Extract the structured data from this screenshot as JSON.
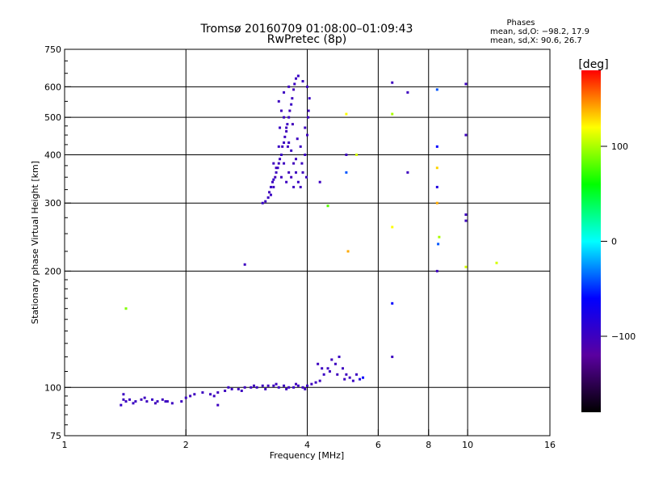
{
  "chart_data": {
    "type": "scatter",
    "title_line1": "Tromsø 20160709 01:08:00–01:09:43",
    "title_line2": "RwPretec (8p)",
    "xlabel": "Frequency [MHz]",
    "ylabel": "Stationary phase Virtual Height [km]",
    "x_scale": "log",
    "y_scale": "log",
    "xlim": [
      1,
      16
    ],
    "ylim": [
      75,
      750
    ],
    "x_ticks": [
      1,
      2,
      4,
      6,
      8,
      10,
      16
    ],
    "y_ticks": [
      75,
      100,
      200,
      300,
      400,
      500,
      600,
      750
    ],
    "x_grid": [
      2,
      4,
      6,
      8,
      10
    ],
    "y_grid": [
      100,
      200,
      300,
      400,
      500,
      600
    ],
    "grid": true,
    "phases_title": "Phases",
    "phases_o": "mean, sd,O: −98.2, 17.9",
    "phases_x": "mean, sd,X:  90.6, 26.7",
    "colorbar_label": "[deg]",
    "colorbar_range": [
      -180,
      180
    ],
    "colorbar_ticks": [
      100,
      0,
      -100
    ],
    "colorbar_colors": [
      "#000000",
      "#5a00a0",
      "#0000ff",
      "#00ffff",
      "#00ff00",
      "#ffff00",
      "#ff0000"
    ],
    "series": [
      {
        "description": "F layer cloud",
        "points": [
          [
            3.1,
            300,
            -95
          ],
          [
            3.15,
            303,
            -100
          ],
          [
            3.2,
            310,
            -98
          ],
          [
            3.22,
            320,
            -102
          ],
          [
            3.25,
            330,
            -96
          ],
          [
            3.28,
            340,
            -100
          ],
          [
            3.3,
            345,
            -95
          ],
          [
            3.33,
            350,
            -105
          ],
          [
            3.35,
            360,
            -100
          ],
          [
            3.38,
            370,
            -98
          ],
          [
            3.4,
            380,
            -102
          ],
          [
            3.42,
            390,
            -100
          ],
          [
            3.45,
            400,
            -97
          ],
          [
            3.47,
            420,
            -101
          ],
          [
            3.5,
            430,
            -99
          ],
          [
            3.52,
            445,
            -100
          ],
          [
            3.55,
            460,
            -103
          ],
          [
            3.57,
            480,
            -98
          ],
          [
            3.6,
            500,
            -100
          ],
          [
            3.62,
            520,
            -101
          ],
          [
            3.65,
            540,
            -97
          ],
          [
            3.67,
            560,
            -100
          ],
          [
            3.7,
            590,
            -104
          ],
          [
            3.72,
            610,
            -98
          ],
          [
            3.75,
            630,
            -100
          ],
          [
            3.8,
            640,
            -96
          ],
          [
            3.4,
            550,
            -100
          ],
          [
            3.45,
            520,
            -102
          ],
          [
            3.5,
            500,
            -99
          ],
          [
            3.55,
            470,
            -101
          ],
          [
            3.6,
            430,
            -100
          ],
          [
            3.65,
            410,
            -98
          ],
          [
            3.7,
            380,
            -103
          ],
          [
            3.75,
            360,
            -100
          ],
          [
            3.8,
            340,
            -97
          ],
          [
            3.85,
            330,
            -100
          ],
          [
            3.9,
            360,
            -102
          ],
          [
            3.95,
            400,
            -99
          ],
          [
            4.0,
            450,
            -100
          ],
          [
            4.02,
            500,
            -101
          ],
          [
            4.05,
            560,
            -98
          ],
          [
            4.0,
            600,
            -100
          ],
          [
            3.9,
            620,
            -97
          ],
          [
            3.3,
            330,
            -100
          ],
          [
            3.25,
            315,
            -98
          ],
          [
            3.35,
            370,
            -101
          ],
          [
            3.45,
            350,
            -100
          ],
          [
            3.55,
            340,
            -99
          ],
          [
            3.65,
            350,
            -102
          ],
          [
            3.75,
            390,
            -100
          ],
          [
            3.85,
            420,
            -98
          ],
          [
            3.95,
            470,
            -100
          ],
          [
            4.03,
            520,
            -101
          ],
          [
            3.5,
            580,
            -99
          ],
          [
            3.6,
            600,
            -100
          ],
          [
            3.42,
            470,
            -98
          ],
          [
            3.58,
            420,
            -100
          ],
          [
            3.68,
            480,
            -103
          ],
          [
            3.78,
            440,
            -100
          ],
          [
            3.88,
            380,
            -99
          ],
          [
            3.98,
            350,
            -100
          ],
          [
            3.3,
            380,
            -101
          ],
          [
            3.4,
            420,
            -98
          ],
          [
            3.5,
            380,
            -100
          ],
          [
            3.6,
            360,
            -102
          ],
          [
            3.7,
            330,
            -100
          ]
        ]
      },
      {
        "description": "E/Es layer traces",
        "points": [
          [
            1.38,
            90,
            -95
          ],
          [
            1.42,
            92,
            -100
          ],
          [
            1.45,
            93,
            -100
          ],
          [
            1.5,
            92,
            -98
          ],
          [
            1.55,
            93,
            -102
          ],
          [
            1.6,
            92,
            -100
          ],
          [
            1.65,
            93,
            -97
          ],
          [
            1.7,
            92,
            -100
          ],
          [
            1.75,
            93,
            -101
          ],
          [
            1.8,
            92,
            -100
          ],
          [
            1.85,
            91,
            -99
          ],
          [
            1.4,
            93,
            -100
          ],
          [
            1.48,
            91,
            -98
          ],
          [
            1.58,
            94,
            -100
          ],
          [
            1.68,
            91,
            -103
          ],
          [
            1.78,
            92,
            -100
          ],
          [
            1.95,
            92,
            -100
          ],
          [
            2.0,
            94,
            -98
          ],
          [
            2.05,
            95,
            -101
          ],
          [
            2.1,
            96,
            -100
          ],
          [
            2.2,
            97,
            -99
          ],
          [
            2.3,
            96,
            -100
          ],
          [
            2.4,
            97,
            -102
          ],
          [
            2.5,
            98,
            -100
          ],
          [
            2.6,
            99,
            -97
          ],
          [
            2.7,
            99,
            -100
          ],
          [
            2.8,
            100,
            -101
          ],
          [
            2.9,
            100,
            -100
          ],
          [
            3.0,
            100,
            -98
          ],
          [
            3.1,
            101,
            -100
          ],
          [
            3.2,
            101,
            -102
          ],
          [
            3.3,
            101,
            -100
          ],
          [
            3.4,
            100,
            -99
          ],
          [
            3.5,
            101,
            -100
          ],
          [
            3.6,
            100,
            -101
          ],
          [
            3.7,
            100,
            -98
          ],
          [
            3.8,
            101,
            -100
          ],
          [
            3.9,
            100,
            -100
          ],
          [
            4.0,
            101,
            -99
          ],
          [
            4.1,
            102,
            -100
          ],
          [
            4.2,
            103,
            -101
          ],
          [
            4.3,
            104,
            -100
          ],
          [
            4.4,
            108,
            -98
          ],
          [
            4.5,
            112,
            -100
          ],
          [
            4.6,
            118,
            -102
          ],
          [
            4.7,
            115,
            -100
          ],
          [
            4.8,
            120,
            -97
          ],
          [
            4.9,
            112,
            -100
          ],
          [
            5.0,
            108,
            -101
          ],
          [
            5.1,
            106,
            -100
          ],
          [
            5.2,
            104,
            -98
          ],
          [
            5.3,
            108,
            -100
          ],
          [
            5.4,
            105,
            -80
          ],
          [
            5.5,
            106,
            -60
          ],
          [
            4.25,
            115,
            -100
          ],
          [
            4.35,
            112,
            -99
          ],
          [
            4.55,
            110,
            -100
          ],
          [
            4.75,
            108,
            -101
          ],
          [
            4.95,
            105,
            -100
          ],
          [
            2.35,
            95,
            -100
          ],
          [
            2.55,
            100,
            -98
          ],
          [
            2.75,
            98,
            -100
          ],
          [
            2.95,
            101,
            -101
          ],
          [
            3.15,
            99,
            -100
          ],
          [
            3.35,
            102,
            -99
          ],
          [
            3.55,
            99,
            -100
          ],
          [
            3.75,
            102,
            -102
          ],
          [
            3.95,
            99,
            -100
          ]
        ]
      },
      {
        "description": "scattered points",
        "points": [
          [
            1.42,
            160,
            90
          ],
          [
            1.4,
            96,
            -98
          ],
          [
            2.8,
            208,
            -100
          ],
          [
            2.4,
            90,
            -100
          ],
          [
            4.3,
            340,
            -100
          ],
          [
            4.5,
            295,
            80
          ],
          [
            5.0,
            510,
            120
          ],
          [
            5.0,
            400,
            -100
          ],
          [
            5.0,
            360,
            -40
          ],
          [
            5.05,
            225,
            140
          ],
          [
            5.3,
            400,
            110
          ],
          [
            6.5,
            615,
            -100
          ],
          [
            6.5,
            510,
            100
          ],
          [
            6.5,
            260,
            120
          ],
          [
            6.5,
            165,
            -60
          ],
          [
            6.5,
            120,
            -100
          ],
          [
            7.1,
            580,
            -100
          ],
          [
            7.1,
            360,
            -100
          ],
          [
            8.4,
            590,
            -40
          ],
          [
            8.4,
            420,
            -60
          ],
          [
            8.4,
            370,
            130
          ],
          [
            8.4,
            330,
            -80
          ],
          [
            8.4,
            300,
            140
          ],
          [
            8.5,
            245,
            100
          ],
          [
            8.45,
            235,
            -40
          ],
          [
            8.4,
            200,
            -100
          ],
          [
            9.9,
            610,
            -100
          ],
          [
            9.9,
            450,
            -100
          ],
          [
            9.9,
            280,
            -100
          ],
          [
            9.9,
            270,
            -100
          ],
          [
            9.9,
            205,
            110
          ],
          [
            11.8,
            210,
            110
          ]
        ]
      }
    ]
  }
}
